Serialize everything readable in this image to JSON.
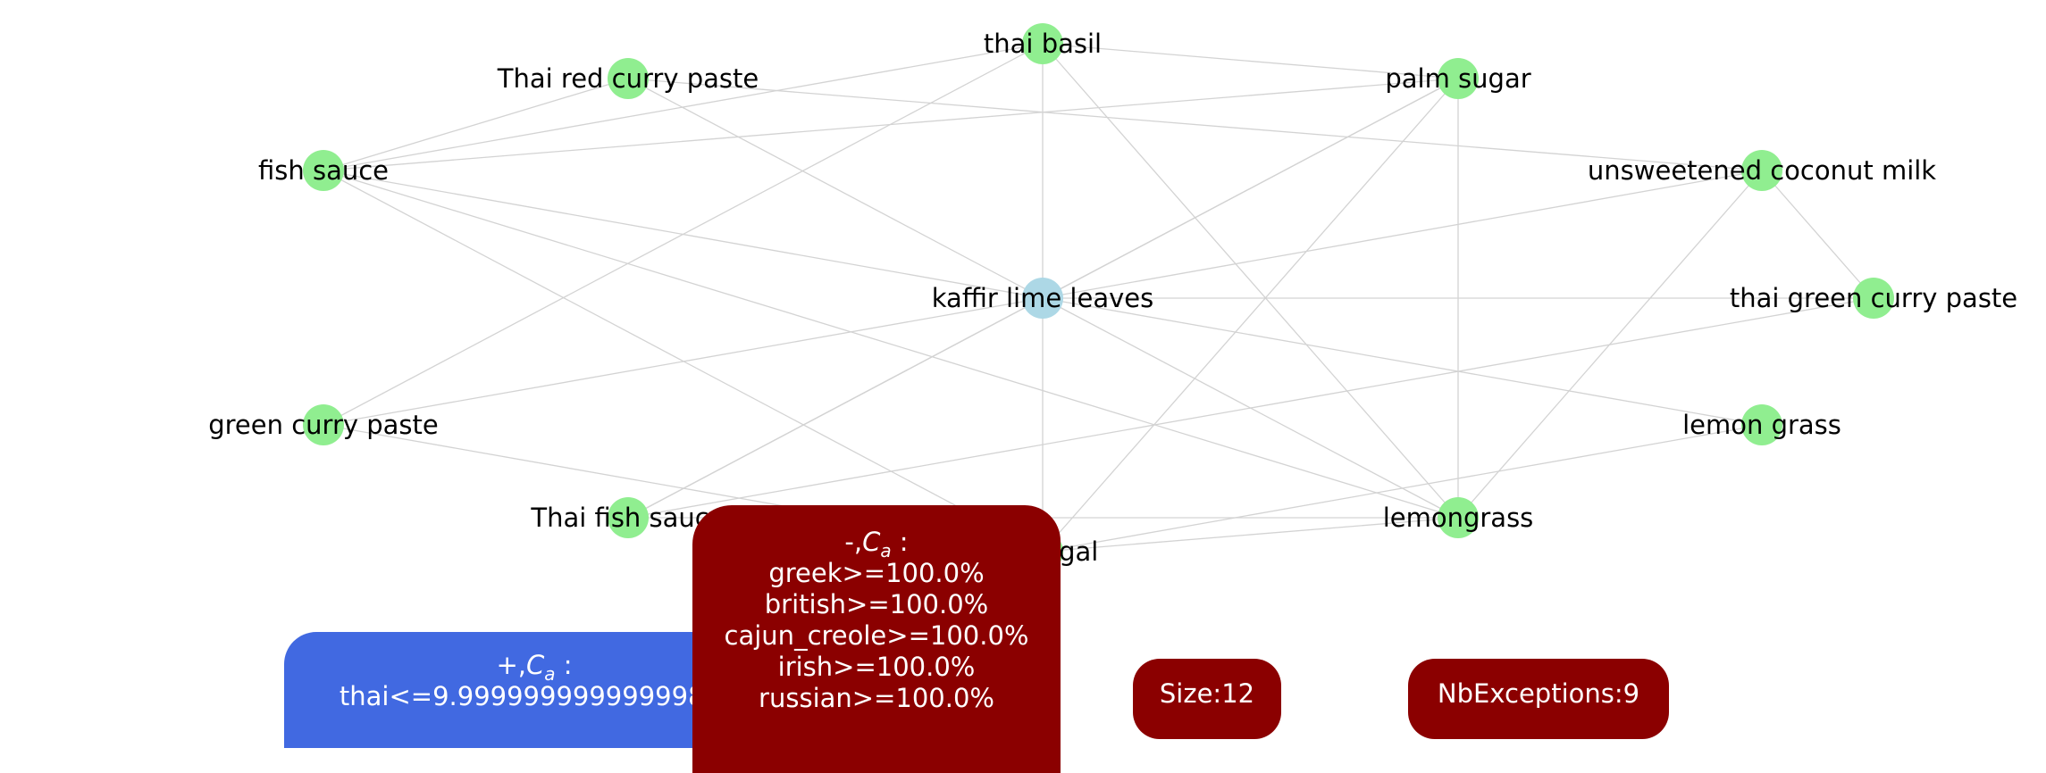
{
  "colors": {
    "center_node": "#add8e6",
    "node": "#90ee90",
    "edge": "#d3d3d3",
    "positive_box": "#4169e1",
    "negative_box": "#8b0000"
  },
  "nodes": [
    {
      "id": "kaffir",
      "label": "kaffir lime leaves",
      "center": true
    },
    {
      "id": "thai_basil",
      "label": "thai basil"
    },
    {
      "id": "red_curry",
      "label": "Thai red curry paste"
    },
    {
      "id": "palm_sugar",
      "label": "palm sugar"
    },
    {
      "id": "fish_sauce",
      "label": "fish sauce"
    },
    {
      "id": "coconut",
      "label": "unsweetened coconut milk"
    },
    {
      "id": "green_thai",
      "label": "thai green curry paste"
    },
    {
      "id": "green_curry",
      "label": "green curry paste"
    },
    {
      "id": "lemon_grass",
      "label": "lemon grass"
    },
    {
      "id": "thai_fish",
      "label": "Thai fish sauce"
    },
    {
      "id": "lemongrass",
      "label": "lemongrass"
    },
    {
      "id": "galangal",
      "label": "galangal"
    }
  ],
  "edges": [
    [
      "kaffir",
      "thai_basil"
    ],
    [
      "kaffir",
      "red_curry"
    ],
    [
      "kaffir",
      "palm_sugar"
    ],
    [
      "kaffir",
      "fish_sauce"
    ],
    [
      "kaffir",
      "green_thai"
    ],
    [
      "kaffir",
      "green_curry"
    ],
    [
      "kaffir",
      "lemon_grass"
    ],
    [
      "kaffir",
      "thai_fish"
    ],
    [
      "kaffir",
      "lemongrass"
    ],
    [
      "kaffir",
      "galangal"
    ],
    [
      "thai_basil",
      "palm_sugar"
    ],
    [
      "thai_basil",
      "fish_sauce"
    ],
    [
      "thai_basil",
      "green_curry"
    ],
    [
      "thai_basil",
      "lemongrass"
    ],
    [
      "red_curry",
      "fish_sauce"
    ],
    [
      "red_curry",
      "coconut"
    ],
    [
      "palm_sugar",
      "fish_sauce"
    ],
    [
      "palm_sugar",
      "lemongrass"
    ],
    [
      "palm_sugar",
      "thai_fish"
    ],
    [
      "palm_sugar",
      "galangal"
    ],
    [
      "fish_sauce",
      "lemongrass"
    ],
    [
      "fish_sauce",
      "galangal"
    ],
    [
      "coconut",
      "green_thai"
    ],
    [
      "coconut",
      "lemongrass"
    ],
    [
      "coconut",
      "kaffir"
    ],
    [
      "green_thai",
      "thai_fish"
    ],
    [
      "green_curry",
      "galangal"
    ],
    [
      "lemon_grass",
      "galangal"
    ],
    [
      "thai_fish",
      "lemongrass"
    ],
    [
      "galangal",
      "lemongrass"
    ]
  ],
  "negative_box": {
    "title": "-,",
    "lines": [
      "greek>=100.0%",
      "british>=100.0%",
      "cajun_creole>=100.0%",
      "irish>=100.0%",
      "russian>=100.0%"
    ]
  },
  "positive_box": {
    "title": "+,",
    "lines": [
      "thai<=9.999999999999998%"
    ]
  },
  "size_label": "Size:12",
  "exceptions_label": "NbExceptions:9"
}
